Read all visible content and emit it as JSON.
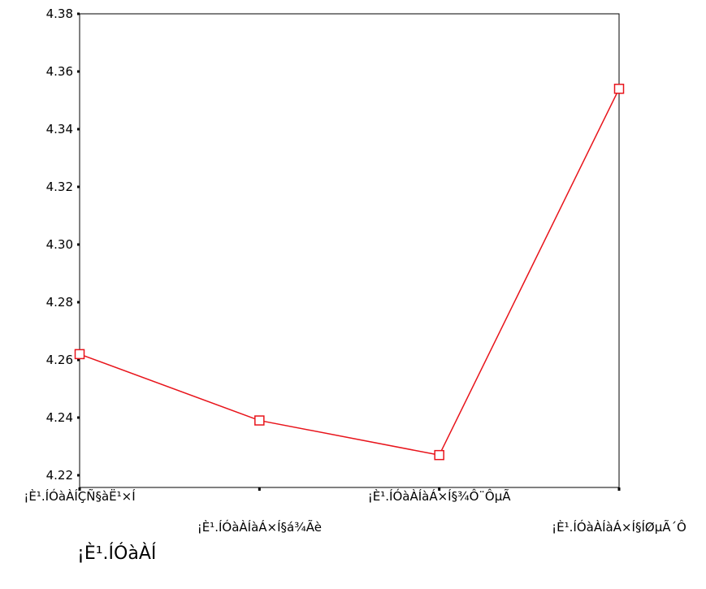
{
  "chart_data": {
    "type": "line",
    "title": "",
    "xlabel": "¡È¹.ÍÓàÀÍ",
    "ylabel": "",
    "categories": [
      "¡È¹.ÍÓàÀÍÇÑ§àË¹×Í",
      "¡È¹.ÍÓàÀÍàÁ×Í§á¾Ãè",
      "¡È¹.ÍÓàÀÍàÁ×Í§¾Ô¨ÔµÃ",
      "¡È¹.ÍÓàÀÍàÁ×Í§ÍØµÃ´Ô"
    ],
    "series": [
      {
        "values": [
          4.262,
          4.239,
          4.227,
          4.354
        ]
      }
    ],
    "ylim": [
      4.22,
      4.38
    ],
    "yticks": [
      "4.22",
      "4.24",
      "4.26",
      "4.28",
      "4.30",
      "4.32",
      "4.34",
      "4.36",
      "4.38"
    ],
    "grid": false,
    "line_color": "#e8141b",
    "marker": "square"
  }
}
